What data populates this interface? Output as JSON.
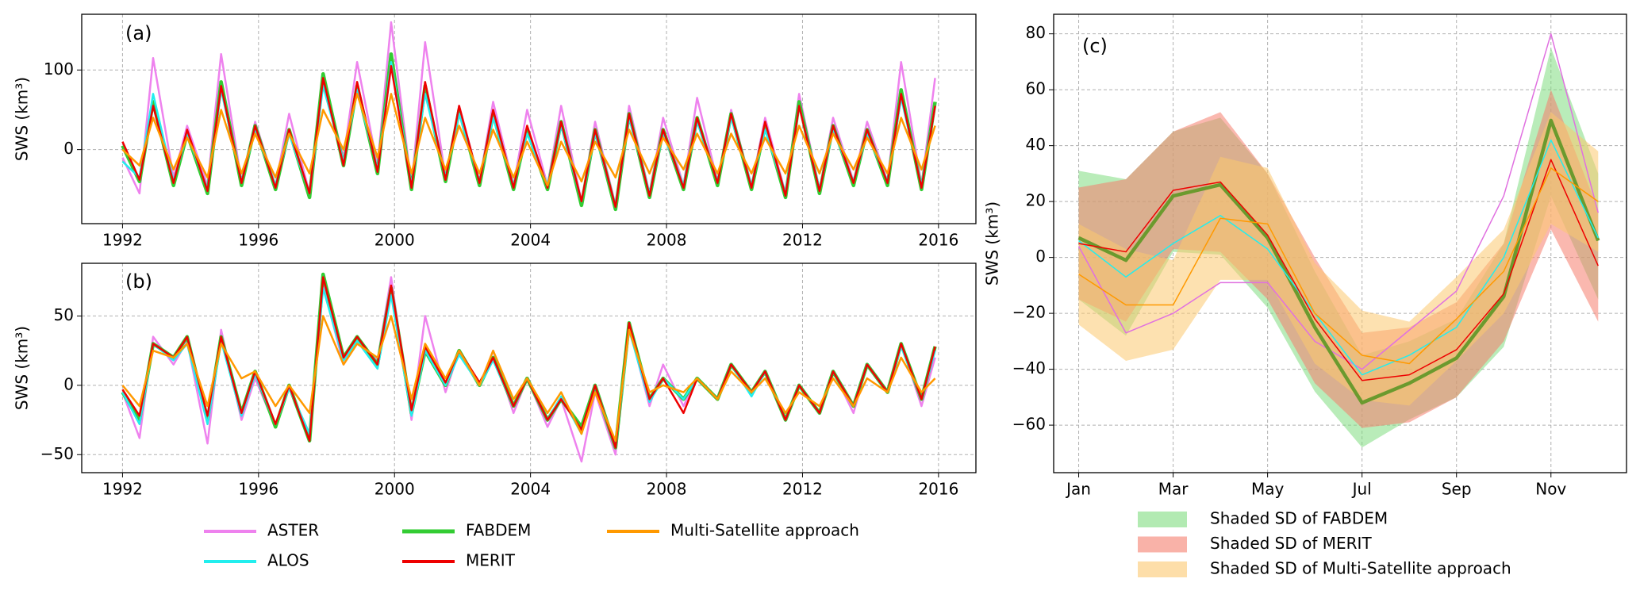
{
  "chart_data": [
    {
      "type": "line",
      "panel_label": "(a)",
      "ylabel": "SWS (km³)",
      "x": [
        1992.0,
        1992.5,
        1992.9,
        1993.5,
        1993.9,
        1994.5,
        1994.9,
        1995.5,
        1995.9,
        1996.5,
        1996.9,
        1997.5,
        1997.9,
        1998.5,
        1998.9,
        1999.5,
        1999.9,
        2000.5,
        2000.9,
        2001.5,
        2001.9,
        2002.5,
        2002.9,
        2003.5,
        2003.9,
        2004.5,
        2004.9,
        2005.5,
        2005.9,
        2006.5,
        2006.9,
        2007.5,
        2007.9,
        2008.5,
        2008.9,
        2009.5,
        2009.9,
        2010.5,
        2010.9,
        2011.5,
        2011.9,
        2012.5,
        2012.9,
        2013.5,
        2013.9,
        2014.5,
        2014.9,
        2015.5,
        2015.9
      ],
      "xlim": [
        1990.8,
        2017.1
      ],
      "xticks": [
        1992,
        1996,
        2000,
        2004,
        2008,
        2012,
        2016
      ],
      "ylim": [
        -93,
        170
      ],
      "yticks": [
        0,
        100
      ],
      "grid": true,
      "series": [
        {
          "name": "ASTER",
          "color": "#ee82ee",
          "values": [
            -10,
            -55,
            115,
            -35,
            30,
            -45,
            120,
            -40,
            35,
            -45,
            45,
            -55,
            90,
            -10,
            110,
            -20,
            160,
            -45,
            135,
            -35,
            55,
            -40,
            60,
            -45,
            50,
            -45,
            55,
            -65,
            35,
            -70,
            55,
            -55,
            40,
            -45,
            65,
            -40,
            50,
            -45,
            40,
            -55,
            70,
            -50,
            40,
            -40,
            35,
            -40,
            110,
            -45,
            90
          ]
        },
        {
          "name": "ALOS",
          "color": "#22eeee",
          "values": [
            -15,
            -35,
            70,
            -40,
            20,
            -50,
            75,
            -40,
            25,
            -45,
            20,
            -55,
            80,
            -15,
            75,
            -25,
            110,
            -45,
            70,
            -35,
            45,
            -40,
            40,
            -45,
            20,
            -45,
            30,
            -65,
            20,
            -70,
            40,
            -55,
            20,
            -45,
            35,
            -40,
            40,
            -45,
            25,
            -55,
            55,
            -50,
            25,
            -40,
            20,
            -40,
            65,
            -45,
            55
          ]
        },
        {
          "name": "FABDEM",
          "color": "#33cc33",
          "values": [
            5,
            -40,
            60,
            -45,
            20,
            -55,
            85,
            -45,
            30,
            -50,
            25,
            -60,
            95,
            -20,
            80,
            -30,
            120,
            -50,
            80,
            -40,
            50,
            -45,
            45,
            -50,
            25,
            -50,
            35,
            -70,
            25,
            -75,
            45,
            -60,
            25,
            -50,
            40,
            -45,
            45,
            -50,
            30,
            -60,
            60,
            -55,
            30,
            -45,
            25,
            -45,
            75,
            -50,
            60
          ]
        },
        {
          "name": "MERIT",
          "color": "#ee0000",
          "values": [
            10,
            -38,
            55,
            -42,
            25,
            -52,
            80,
            -42,
            30,
            -48,
            25,
            -55,
            90,
            -20,
            85,
            -28,
            105,
            -48,
            85,
            -38,
            55,
            -42,
            50,
            -48,
            30,
            -48,
            35,
            -65,
            25,
            -72,
            45,
            -58,
            25,
            -48,
            40,
            -42,
            45,
            -48,
            35,
            -58,
            55,
            -52,
            30,
            -42,
            25,
            -42,
            70,
            -48,
            55
          ]
        },
        {
          "name": "Multi-Satellite approach",
          "color": "#ff9900",
          "values": [
            0,
            -20,
            40,
            -25,
            15,
            -35,
            50,
            -30,
            20,
            -35,
            20,
            -30,
            50,
            0,
            70,
            -10,
            70,
            -30,
            40,
            -25,
            30,
            -30,
            25,
            -35,
            10,
            -45,
            10,
            -40,
            10,
            -35,
            25,
            -30,
            15,
            -25,
            20,
            -30,
            20,
            -30,
            15,
            -30,
            30,
            -30,
            20,
            -25,
            15,
            -30,
            40,
            -25,
            30
          ]
        }
      ]
    },
    {
      "type": "line",
      "panel_label": "(b)",
      "ylabel": "SWS (km³)",
      "x": [
        1992.0,
        1992.5,
        1992.9,
        1993.5,
        1993.9,
        1994.5,
        1994.9,
        1995.5,
        1995.9,
        1996.5,
        1996.9,
        1997.5,
        1997.9,
        1998.5,
        1998.9,
        1999.5,
        1999.9,
        2000.5,
        2000.9,
        2001.5,
        2001.9,
        2002.5,
        2002.9,
        2003.5,
        2003.9,
        2004.5,
        2004.9,
        2005.5,
        2005.9,
        2006.5,
        2006.9,
        2007.5,
        2007.9,
        2008.5,
        2008.9,
        2009.5,
        2009.9,
        2010.5,
        2010.9,
        2011.5,
        2011.9,
        2012.5,
        2012.9,
        2013.5,
        2013.9,
        2014.5,
        2014.9,
        2015.5,
        2015.9
      ],
      "xlim": [
        1990.8,
        2017.1
      ],
      "xticks": [
        1992,
        1996,
        2000,
        2004,
        2008,
        2012,
        2016
      ],
      "ylim": [
        -63,
        88
      ],
      "yticks": [
        {
          "value": -50,
          "label": "−50"
        },
        0,
        50
      ],
      "grid": true,
      "series": [
        {
          "color": "#ee82ee",
          "values": [
            -5,
            -38,
            35,
            15,
            32,
            -42,
            40,
            -25,
            5,
            -30,
            -2,
            -35,
            72,
            15,
            32,
            18,
            78,
            -25,
            50,
            -5,
            25,
            0,
            25,
            -20,
            5,
            -30,
            -10,
            -55,
            -5,
            -50,
            42,
            -15,
            15,
            -15,
            5,
            -10,
            15,
            -5,
            10,
            -25,
            0,
            -20,
            10,
            -20,
            15,
            -5,
            30,
            -15,
            20
          ]
        },
        {
          "color": "#22eeee",
          "values": [
            -5,
            -28,
            30,
            18,
            30,
            -28,
            32,
            -22,
            8,
            -28,
            -2,
            -35,
            70,
            18,
            32,
            12,
            65,
            -22,
            25,
            0,
            22,
            0,
            18,
            -15,
            5,
            -25,
            -8,
            -35,
            0,
            -45,
            40,
            -12,
            5,
            -10,
            5,
            -10,
            15,
            -8,
            10,
            -25,
            0,
            -20,
            10,
            -15,
            15,
            -5,
            28,
            -10,
            25
          ]
        },
        {
          "color": "#33cc33",
          "values": [
            -5,
            -25,
            30,
            20,
            35,
            -25,
            35,
            -20,
            10,
            -30,
            0,
            -40,
            80,
            20,
            35,
            15,
            70,
            -20,
            25,
            0,
            25,
            0,
            20,
            -15,
            5,
            -25,
            -10,
            -30,
            0,
            -45,
            45,
            -10,
            5,
            -10,
            5,
            -10,
            15,
            -5,
            10,
            -25,
            0,
            -20,
            10,
            -15,
            15,
            -5,
            30,
            -10,
            28
          ]
        },
        {
          "color": "#ee0000",
          "values": [
            -3,
            -22,
            30,
            20,
            35,
            -22,
            35,
            -20,
            10,
            -28,
            0,
            -40,
            78,
            20,
            35,
            15,
            72,
            -18,
            28,
            2,
            25,
            2,
            20,
            -15,
            5,
            -25,
            -10,
            -32,
            0,
            -45,
            45,
            -10,
            5,
            -20,
            5,
            -10,
            15,
            -5,
            10,
            -25,
            0,
            -20,
            10,
            -15,
            15,
            -5,
            30,
            -10,
            28
          ]
        },
        {
          "color": "#ff9900",
          "values": [
            0,
            -15,
            25,
            20,
            30,
            -15,
            30,
            5,
            10,
            -15,
            0,
            -20,
            50,
            15,
            30,
            20,
            50,
            -10,
            30,
            5,
            25,
            0,
            25,
            -10,
            5,
            -20,
            -5,
            -35,
            -5,
            -40,
            40,
            -5,
            0,
            -5,
            5,
            -10,
            10,
            -5,
            5,
            -20,
            -5,
            -15,
            5,
            -15,
            5,
            -5,
            20,
            -5,
            5
          ]
        }
      ]
    },
    {
      "type": "line",
      "panel_label": "(c)",
      "ylabel": "SWS (km³)",
      "categories": [
        "Jan",
        null,
        "Mar",
        null,
        "May",
        null,
        "Jul",
        null,
        "Sep",
        null,
        "Nov",
        null
      ],
      "ylim": [
        -77,
        87
      ],
      "yticks": [
        {
          "value": -60,
          "label": "−60"
        },
        {
          "value": -40,
          "label": "−40"
        },
        {
          "value": -20,
          "label": "−20"
        },
        0,
        20,
        40,
        60,
        80
      ],
      "grid": true,
      "bands": [
        {
          "name": "Shaded SD of FABDEM",
          "color": "#7fdc7f",
          "lower": [
            -15,
            -28,
            2,
            1,
            -18,
            -48,
            -68,
            -58,
            -50,
            -32,
            22,
            -15
          ],
          "upper": [
            31,
            28,
            45,
            50,
            30,
            -5,
            -35,
            -30,
            -22,
            5,
            75,
            30
          ]
        },
        {
          "name": "Shaded SD of MERIT",
          "color": "#f57e6e",
          "lower": [
            -15,
            -23,
            3,
            2,
            -15,
            -45,
            -61,
            -59,
            -50,
            -30,
            10,
            -23
          ],
          "upper": [
            25,
            28,
            45,
            52,
            30,
            0,
            -27,
            -25,
            -16,
            5,
            60,
            17
          ]
        },
        {
          "name": "Shaded SD of Multi-Satellite approach",
          "color": "#fcc870",
          "lower": [
            -24,
            -37,
            -33,
            -8,
            -8,
            -38,
            -51,
            -53,
            -37,
            -20,
            12,
            2
          ],
          "upper": [
            12,
            3,
            -1,
            36,
            32,
            -2,
            -19,
            -23,
            -7,
            10,
            52,
            38
          ]
        }
      ],
      "series": [
        {
          "color": "#e070e0",
          "values": [
            4,
            -27,
            -20,
            -9,
            -9,
            -30,
            -40,
            -26,
            -12,
            22,
            80,
            16
          ]
        },
        {
          "color": "#22eeee",
          "values": [
            6,
            -7,
            5,
            15,
            3,
            -20,
            -42,
            -35,
            -25,
            0,
            42,
            7
          ]
        },
        {
          "color": "#6b9a2e",
          "values": [
            7,
            -1,
            22,
            26,
            7,
            -25,
            -52,
            -45,
            -36,
            -14,
            49,
            6
          ]
        },
        {
          "color": "#ee0000",
          "values": [
            5,
            2,
            24,
            27,
            8,
            -22,
            -44,
            -42,
            -33,
            -13,
            35,
            -3
          ]
        },
        {
          "color": "#ff9900",
          "values": [
            -6,
            -17,
            -17,
            14,
            12,
            -20,
            -35,
            -38,
            -22,
            -5,
            32,
            20
          ]
        }
      ]
    }
  ]
}
